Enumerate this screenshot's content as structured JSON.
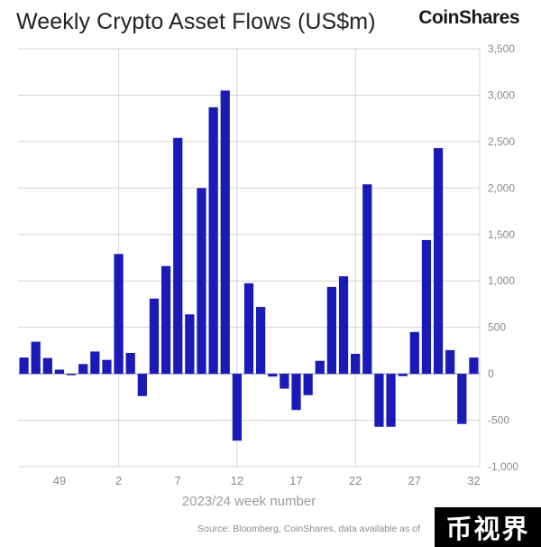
{
  "title": "Weekly Crypto Asset Flows (US$m)",
  "brand": "CoinShares",
  "source": "Source: Bloomberg, CoinShares, data available as of",
  "watermark": "币视界",
  "colors": {
    "bar": "#1a1ab8",
    "grid": "#d4d4d4",
    "zero": "#999999"
  },
  "chart_data": {
    "type": "bar",
    "title": "Weekly Crypto Asset Flows (US$m)",
    "xlabel": "2023/24 week number",
    "ylabel": "",
    "ylim": [
      -1000,
      3500
    ],
    "yticks": [
      3500,
      3000,
      2500,
      2000,
      1500,
      1000,
      500,
      0,
      -500,
      -1000
    ],
    "ytick_labels": [
      "3,500",
      "3,000",
      "2,500",
      "2,000",
      "1,500",
      "1,000",
      "500",
      "0",
      "-500",
      "-1,000"
    ],
    "xtick_labels": [
      "49",
      "2",
      "7",
      "12",
      "17",
      "22",
      "27",
      "32"
    ],
    "xtick_indices": [
      3,
      8,
      13,
      18,
      23,
      28,
      33,
      38
    ],
    "vgrid_indices": [
      8,
      18,
      28
    ],
    "grid": true,
    "categories": [
      "46",
      "47",
      "48",
      "49",
      "50",
      "51",
      "52",
      "1",
      "2",
      "3",
      "4",
      "5",
      "6",
      "7",
      "8",
      "9",
      "10",
      "11",
      "12",
      "13",
      "14",
      "15",
      "16",
      "17",
      "18",
      "19",
      "20",
      "21",
      "22",
      "23",
      "24",
      "25",
      "26",
      "27",
      "28",
      "29",
      "30",
      "31",
      "32"
    ],
    "values": [
      175,
      345,
      170,
      45,
      -15,
      105,
      240,
      150,
      1290,
      225,
      -240,
      810,
      1160,
      2540,
      640,
      2000,
      2870,
      3050,
      -720,
      975,
      720,
      -30,
      -160,
      -390,
      -230,
      140,
      935,
      1050,
      215,
      2040,
      -570,
      -570,
      -25,
      450,
      1440,
      2430,
      255,
      -540,
      175
    ]
  }
}
